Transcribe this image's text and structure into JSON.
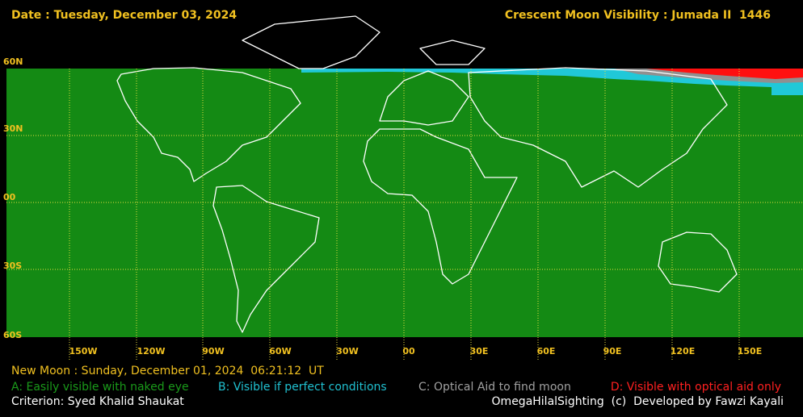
{
  "header": {
    "date": "Date : Tuesday, December 03, 2024",
    "title": "Crescent Moon Visibility : Jumada II  1446"
  },
  "map": {
    "lat_labels": [
      "60N",
      "30N",
      "00",
      "30S",
      "60S"
    ],
    "lon_labels": [
      "150W",
      "120W",
      "90W",
      "60W",
      "30W",
      "00",
      "30E",
      "60E",
      "90E",
      "120E",
      "150E"
    ]
  },
  "footer": {
    "new_moon": "New Moon : Sunday, December 01, 2024  06:21:12  UT",
    "legend": {
      "a": "A: Easily visible with naked eye",
      "b": "B: Visible if perfect conditions",
      "c": "C: Optical Aid to find moon",
      "d": "D: Visible with optical aid only"
    },
    "criterion": "Criterion: Syed Khalid Shaukat",
    "credit": "OmegaHilalSighting  (c)  Developed by Fawzi Kayali"
  }
}
